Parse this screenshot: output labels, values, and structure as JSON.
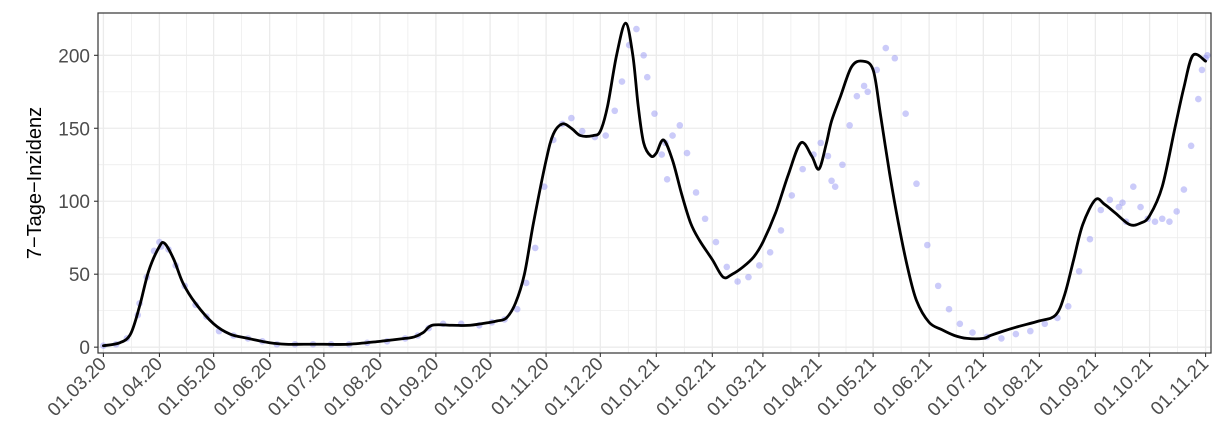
{
  "chart_data": {
    "type": "line",
    "title": "",
    "xlabel": "",
    "ylabel": "7−Tage−Inzidenz",
    "ylim": [
      -4,
      229
    ],
    "xlim": [
      "2020-02-27",
      "2021-11-04"
    ],
    "grid": true,
    "legend": "none",
    "y_ticks": [
      0,
      50,
      100,
      150,
      200
    ],
    "y_tick_labels": [
      "0",
      "50",
      "100",
      "150",
      "200"
    ],
    "x_ticks": [
      "2020-03-01",
      "2020-04-01",
      "2020-05-01",
      "2020-06-01",
      "2020-07-01",
      "2020-08-01",
      "2020-09-01",
      "2020-10-01",
      "2020-11-01",
      "2020-12-01",
      "2021-01-01",
      "2021-02-01",
      "2021-03-01",
      "2021-04-01",
      "2021-05-01",
      "2021-06-01",
      "2021-07-01",
      "2021-08-01",
      "2021-09-01",
      "2021-10-01",
      "2021-11-01"
    ],
    "x_tick_labels": [
      "01.03.20",
      "01.04.20",
      "01.05.20",
      "01.06.20",
      "01.07.20",
      "01.08.20",
      "01.09.20",
      "01.10.20",
      "01.11.20",
      "01.12.20",
      "01.01.21",
      "01.02.21",
      "01.03.21",
      "01.04.21",
      "01.05.21",
      "01.06.21",
      "01.07.21",
      "01.08.21",
      "01.09.21",
      "01.10.21",
      "01.11.21"
    ],
    "colors": {
      "points": "#8c8cf2",
      "line": "#000000",
      "grid": "#ebebeb",
      "border": "#333333"
    },
    "series": [
      {
        "type": "line",
        "x": [
          "2020-03-01",
          "2020-03-10",
          "2020-03-16",
          "2020-03-21",
          "2020-03-26",
          "2020-04-01",
          "2020-04-04",
          "2020-04-09",
          "2020-04-14",
          "2020-04-21",
          "2020-05-01",
          "2020-05-10",
          "2020-05-20",
          "2020-06-01",
          "2020-06-10",
          "2020-06-20",
          "2020-07-01",
          "2020-07-15",
          "2020-08-01",
          "2020-08-15",
          "2020-08-20",
          "2020-08-25",
          "2020-08-30",
          "2020-09-10",
          "2020-09-20",
          "2020-10-01",
          "2020-10-05",
          "2020-10-10",
          "2020-10-15",
          "2020-10-20",
          "2020-10-25",
          "2020-11-01",
          "2020-11-05",
          "2020-11-10",
          "2020-11-15",
          "2020-11-20",
          "2020-11-27",
          "2020-12-01",
          "2020-12-05",
          "2020-12-10",
          "2020-12-15",
          "2020-12-19",
          "2020-12-22",
          "2020-12-25",
          "2020-12-29",
          "2021-01-01",
          "2021-01-05",
          "2021-01-10",
          "2021-01-15",
          "2021-01-20",
          "2021-01-25",
          "2021-02-01",
          "2021-02-07",
          "2021-02-12",
          "2021-02-18",
          "2021-02-24",
          "2021-03-01",
          "2021-03-08",
          "2021-03-15",
          "2021-03-22",
          "2021-03-28",
          "2021-04-01",
          "2021-04-05",
          "2021-04-08",
          "2021-04-13",
          "2021-04-19",
          "2021-04-25",
          "2021-05-01",
          "2021-05-05",
          "2021-05-10",
          "2021-05-15",
          "2021-05-20",
          "2021-05-25",
          "2021-06-01",
          "2021-06-08",
          "2021-06-15",
          "2021-06-22",
          "2021-07-01",
          "2021-07-05",
          "2021-07-12",
          "2021-07-20",
          "2021-08-01",
          "2021-08-10",
          "2021-08-15",
          "2021-08-20",
          "2021-08-25",
          "2021-09-01",
          "2021-09-06",
          "2021-09-12",
          "2021-09-20",
          "2021-09-26",
          "2021-10-01",
          "2021-10-08",
          "2021-10-15",
          "2021-10-20",
          "2021-10-25",
          "2021-11-01"
        ],
        "y": [
          1,
          3,
          9,
          28,
          52,
          69,
          71,
          60,
          44,
          30,
          16,
          9,
          6,
          3,
          2,
          2,
          2,
          2,
          4,
          6,
          7,
          10,
          15,
          15,
          15,
          17,
          18,
          20,
          30,
          50,
          85,
          128,
          146,
          153,
          150,
          145,
          145,
          148,
          165,
          200,
          222,
          200,
          165,
          140,
          131,
          133,
          142,
          128,
          105,
          85,
          73,
          60,
          48,
          50,
          55,
          62,
          72,
          92,
          118,
          140,
          131,
          122,
          139,
          155,
          172,
          192,
          196,
          190,
          160,
          120,
          85,
          55,
          32,
          17,
          12,
          8,
          6,
          6,
          8,
          11,
          14,
          18,
          22,
          36,
          60,
          84,
          101,
          98,
          92,
          84,
          85,
          90,
          110,
          150,
          178,
          200,
          196
        ]
      }
    ],
    "points": {
      "x": [
        "2020-03-01",
        "2020-03-08",
        "2020-03-14",
        "2020-03-20",
        "2020-03-21",
        "2020-03-25",
        "2020-03-29",
        "2020-04-01",
        "2020-04-02",
        "2020-04-06",
        "2020-04-10",
        "2020-04-15",
        "2020-04-21",
        "2020-04-27",
        "2020-05-04",
        "2020-05-12",
        "2020-05-20",
        "2020-05-28",
        "2020-06-05",
        "2020-06-15",
        "2020-06-25",
        "2020-07-05",
        "2020-07-15",
        "2020-07-25",
        "2020-08-05",
        "2020-08-15",
        "2020-08-22",
        "2020-08-28",
        "2020-09-05",
        "2020-09-15",
        "2020-09-25",
        "2020-10-02",
        "2020-10-09",
        "2020-10-16",
        "2020-10-21",
        "2020-10-26",
        "2020-10-31",
        "2020-11-05",
        "2020-11-10",
        "2020-11-15",
        "2020-11-21",
        "2020-11-28",
        "2020-12-04",
        "2020-12-09",
        "2020-12-13",
        "2020-12-17",
        "2020-12-21",
        "2020-12-25",
        "2020-12-27",
        "2020-12-31",
        "2021-01-04",
        "2021-01-06",
        "2021-01-07",
        "2021-01-10",
        "2021-01-14",
        "2021-01-18",
        "2021-01-23",
        "2021-01-28",
        "2021-02-03",
        "2021-02-09",
        "2021-02-15",
        "2021-02-21",
        "2021-02-27",
        "2021-03-05",
        "2021-03-11",
        "2021-03-17",
        "2021-03-23",
        "2021-03-29",
        "2021-04-02",
        "2021-04-06",
        "2021-04-08",
        "2021-04-10",
        "2021-04-14",
        "2021-04-18",
        "2021-04-22",
        "2021-04-26",
        "2021-04-28",
        "2021-05-03",
        "2021-05-08",
        "2021-05-13",
        "2021-05-19",
        "2021-05-25",
        "2021-05-31",
        "2021-06-06",
        "2021-06-12",
        "2021-06-18",
        "2021-06-25",
        "2021-07-03",
        "2021-07-11",
        "2021-07-19",
        "2021-07-27",
        "2021-08-04",
        "2021-08-11",
        "2021-08-17",
        "2021-08-23",
        "2021-08-29",
        "2021-09-04",
        "2021-09-09",
        "2021-09-14",
        "2021-09-16",
        "2021-09-18",
        "2021-09-22",
        "2021-09-26",
        "2021-09-30",
        "2021-10-04",
        "2021-10-08",
        "2021-10-12",
        "2021-10-16",
        "2021-10-20",
        "2021-10-24",
        "2021-10-28",
        "2021-10-30",
        "2021-11-01",
        "2021-11-02"
      ],
      "y": [
        1,
        2,
        6,
        22,
        30,
        48,
        66,
        72,
        69,
        67,
        56,
        42,
        29,
        21,
        11,
        8,
        6,
        4,
        2,
        2,
        2,
        2,
        2,
        3,
        4,
        6,
        8,
        13,
        16,
        16,
        15,
        17,
        19,
        26,
        44,
        68,
        110,
        142,
        153,
        157,
        148,
        144,
        145,
        162,
        182,
        207,
        218,
        200,
        185,
        160,
        132,
        140,
        115,
        145,
        152,
        133,
        106,
        88,
        72,
        55,
        45,
        48,
        56,
        65,
        80,
        104,
        122,
        132,
        140,
        131,
        114,
        110,
        125,
        152,
        172,
        179,
        175,
        190,
        205,
        198,
        160,
        112,
        70,
        42,
        26,
        16,
        10,
        7,
        6,
        9,
        11,
        16,
        20,
        28,
        52,
        74,
        94,
        101,
        96,
        99,
        86,
        110,
        96,
        88,
        86,
        88,
        86,
        93,
        108,
        138,
        170,
        190,
        198,
        200
      ]
    }
  }
}
